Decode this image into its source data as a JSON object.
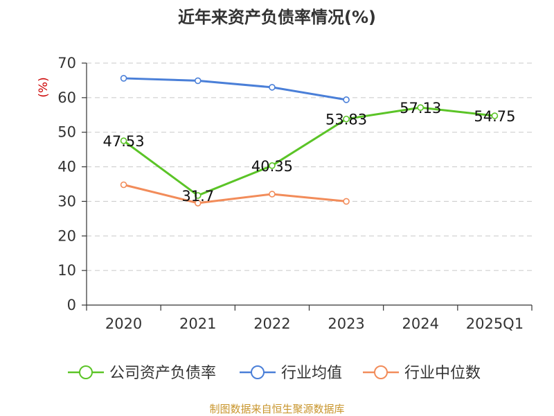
{
  "chart_data": {
    "type": "line",
    "title": "近年来资产负债率情况(%)",
    "ylabel": "(%)",
    "xlabel": "",
    "categories": [
      "2020",
      "2021",
      "2022",
      "2023",
      "2024",
      "2025Q1"
    ],
    "ylim": [
      0,
      70
    ],
    "yticks": [
      0,
      10,
      20,
      30,
      40,
      50,
      60,
      70
    ],
    "grid": true,
    "legend_position": "bottom",
    "series": [
      {
        "name": "公司资产负债率",
        "color": "#5bc427",
        "values": [
          47.53,
          31.7,
          40.35,
          53.83,
          57.13,
          54.75
        ],
        "labels": [
          "47.53",
          "31.7",
          "40.35",
          "53.83",
          "57.13",
          "54.75"
        ]
      },
      {
        "name": "行业均值",
        "color": "#4a7fd8",
        "values": [
          65.6,
          64.9,
          63.0,
          59.4,
          null,
          null
        ],
        "labels": []
      },
      {
        "name": "行业中位数",
        "color": "#f28c5a",
        "values": [
          34.8,
          29.5,
          32.1,
          30.0,
          null,
          null
        ],
        "labels": []
      }
    ]
  },
  "source": "制图数据来自恒生聚源数据库"
}
